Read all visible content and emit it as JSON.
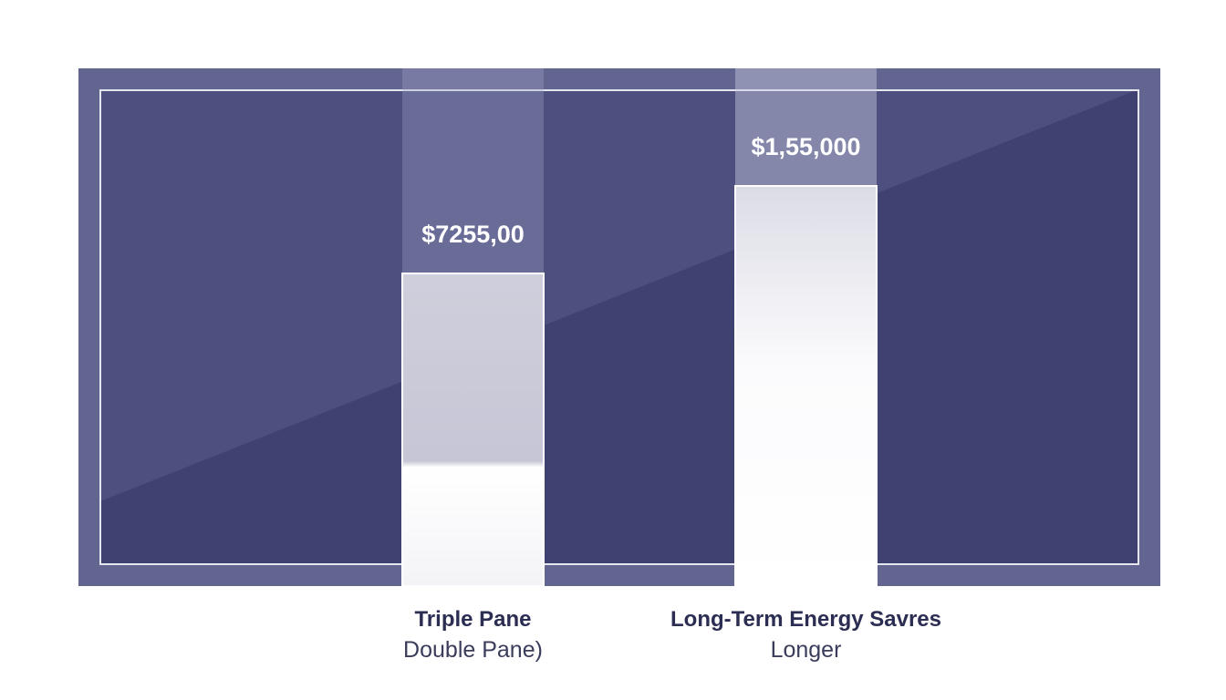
{
  "chart_data": {
    "type": "bar",
    "categories": [
      {
        "title": "Triple Pane",
        "subtitle": "Double Pane)"
      },
      {
        "title": "Long-Term Energy Savres",
        "subtitle": "Longer"
      }
    ],
    "values": [
      7255,
      155000
    ],
    "value_labels": [
      "$7255,00",
      "$1,55,000"
    ],
    "ylim": [
      0,
      155000
    ],
    "grid": false,
    "colors": {
      "frame": "#636591",
      "panel": "#4d4f7e",
      "panel_dark": "#3f4170",
      "bar": "#f4f4f8",
      "bar_shade": "#c9c9d9",
      "inner_border": "#e6e6f0"
    }
  }
}
